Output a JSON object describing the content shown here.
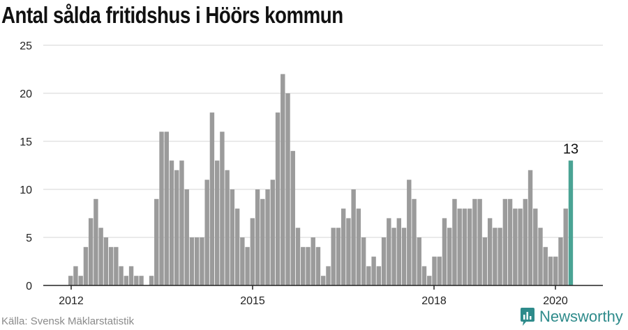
{
  "title": "Antal sålda fritidshus i Höörs kommun",
  "source": "Källa: Svensk Mäklarstatistik",
  "brand": "Newsworthy",
  "colors": {
    "bar": "#9b9b9b",
    "highlight": "#4aa394",
    "grid": "#dddddd",
    "axis": "#222222",
    "brand": "#2e8b8b"
  },
  "chart_data": {
    "type": "bar",
    "ylim": [
      0,
      25
    ],
    "yticks": [
      0,
      5,
      10,
      15,
      20,
      25
    ],
    "xticks": [
      "2012",
      "2015",
      "2018",
      "2020"
    ],
    "highlight_label": "13",
    "values": [
      1,
      2,
      1,
      4,
      7,
      9,
      6,
      5,
      4,
      4,
      2,
      1,
      2,
      1,
      1,
      0,
      1,
      9,
      16,
      16,
      13,
      12,
      13,
      10,
      5,
      5,
      5,
      11,
      18,
      13,
      16,
      12,
      10,
      8,
      5,
      4,
      7,
      10,
      9,
      10,
      11,
      18,
      22,
      20,
      14,
      6,
      4,
      4,
      5,
      4,
      1,
      2,
      6,
      6,
      8,
      7,
      10,
      8,
      5,
      2,
      3,
      2,
      5,
      7,
      6,
      7,
      6,
      11,
      9,
      5,
      2,
      1,
      3,
      3,
      7,
      6,
      9,
      8,
      8,
      8,
      9,
      9,
      5,
      7,
      6,
      6,
      9,
      9,
      8,
      8,
      9,
      12,
      8,
      6,
      4,
      3,
      3,
      5,
      8,
      13
    ],
    "highlight_index": 99
  }
}
